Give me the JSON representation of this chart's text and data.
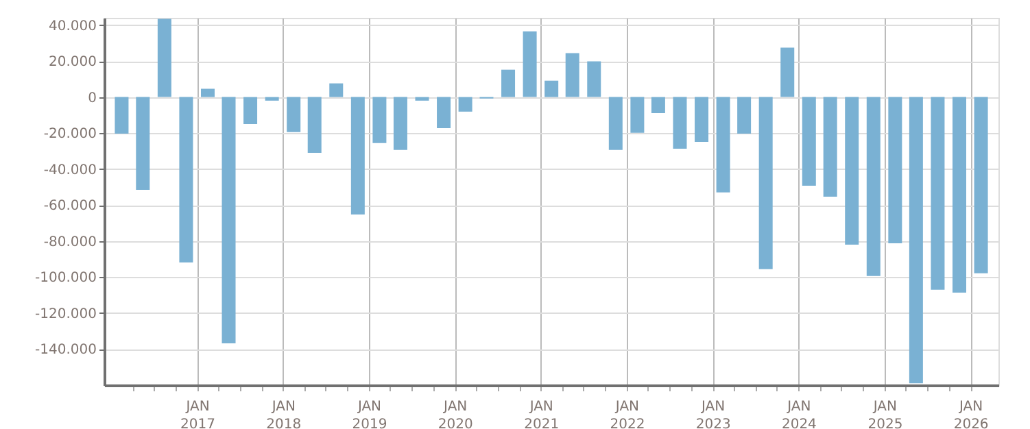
{
  "chart_data": {
    "type": "bar",
    "x": [
      "2016-02-15",
      "2016-05-15",
      "2016-08-15",
      "2016-11-15",
      "2017-02-15",
      "2017-05-15",
      "2017-08-15",
      "2017-11-15",
      "2018-02-15",
      "2018-05-15",
      "2018-08-15",
      "2018-11-15",
      "2019-02-15",
      "2019-05-15",
      "2019-08-15",
      "2019-11-15",
      "2020-02-15",
      "2020-05-15",
      "2020-08-15",
      "2020-11-15",
      "2021-02-15",
      "2021-05-15",
      "2021-08-15",
      "2021-11-15",
      "2022-02-15",
      "2022-05-15",
      "2022-08-15",
      "2022-11-15",
      "2023-02-15",
      "2023-05-15",
      "2023-08-15",
      "2023-11-15",
      "2024-02-15",
      "2024-05-15",
      "2024-08-15",
      "2024-11-15",
      "2025-02-15",
      "2025-05-15",
      "2025-08-15",
      "2025-11-15",
      "2026-02-15"
    ],
    "values": [
      -20300,
      -51500,
      43400,
      -91900,
      4600,
      -136800,
      -15000,
      -2000,
      -19500,
      -31000,
      7600,
      -65200,
      -25600,
      -29400,
      -2000,
      -17300,
      -8100,
      -800,
      15200,
      36500,
      9100,
      24400,
      19800,
      -29400,
      -19800,
      -8900,
      -28700,
      -24900,
      -53000,
      -20300,
      -95600,
      27400,
      -49200,
      -55300,
      -82000,
      -99400,
      -81200,
      -159000,
      -107000,
      -108600,
      -97900
    ],
    "color": "#7ab1d3",
    "xlim": [
      "2016-01-01",
      "2026-04-01"
    ],
    "xticks": [
      {
        "value": "2016-04-01",
        "label": null
      },
      {
        "value": "2016-07-01",
        "label": null
      },
      {
        "value": "2016-10-01",
        "label": null
      },
      {
        "value": "2017-01-01",
        "label": "JAN 2017"
      },
      {
        "value": "2017-04-01",
        "label": null
      },
      {
        "value": "2017-07-01",
        "label": null
      },
      {
        "value": "2017-10-01",
        "label": null
      },
      {
        "value": "2018-01-01",
        "label": "JAN 2018"
      },
      {
        "value": "2018-04-01",
        "label": null
      },
      {
        "value": "2018-07-01",
        "label": null
      },
      {
        "value": "2018-10-01",
        "label": null
      },
      {
        "value": "2019-01-01",
        "label": "JAN 2019"
      },
      {
        "value": "2019-04-01",
        "label": null
      },
      {
        "value": "2019-07-01",
        "label": null
      },
      {
        "value": "2019-10-01",
        "label": null
      },
      {
        "value": "2020-01-01",
        "label": "JAN 2020"
      },
      {
        "value": "2020-04-01",
        "label": null
      },
      {
        "value": "2020-07-01",
        "label": null
      },
      {
        "value": "2020-10-01",
        "label": null
      },
      {
        "value": "2021-01-01",
        "label": "JAN 2021"
      },
      {
        "value": "2021-04-01",
        "label": null
      },
      {
        "value": "2021-07-01",
        "label": null
      },
      {
        "value": "2021-10-01",
        "label": null
      },
      {
        "value": "2022-01-01",
        "label": "JAN 2022"
      },
      {
        "value": "2022-04-01",
        "label": null
      },
      {
        "value": "2022-07-01",
        "label": null
      },
      {
        "value": "2022-10-01",
        "label": null
      },
      {
        "value": "2023-01-01",
        "label": "JAN 2023"
      },
      {
        "value": "2023-04-01",
        "label": null
      },
      {
        "value": "2023-07-01",
        "label": null
      },
      {
        "value": "2023-10-01",
        "label": null
      },
      {
        "value": "2024-01-01",
        "label": "JAN 2024"
      },
      {
        "value": "2024-04-01",
        "label": null
      },
      {
        "value": "2024-07-01",
        "label": null
      },
      {
        "value": "2024-10-01",
        "label": null
      },
      {
        "value": "2025-01-01",
        "label": "JAN 2025"
      },
      {
        "value": "2025-04-01",
        "label": null
      },
      {
        "value": "2025-07-01",
        "label": null
      },
      {
        "value": "2025-10-01",
        "label": null
      },
      {
        "value": "2026-01-01",
        "label": "JAN 2026"
      }
    ],
    "ylim": [
      -160000,
      44000
    ],
    "yticks": [
      {
        "value": -140000,
        "label": "-140.000"
      },
      {
        "value": -120000,
        "label": "-120.000"
      },
      {
        "value": -100000,
        "label": "-100.000"
      },
      {
        "value": -80000,
        "label": "-80.000"
      },
      {
        "value": -60000,
        "label": "-60.000"
      },
      {
        "value": -40000,
        "label": "-40.000"
      },
      {
        "value": -20000,
        "label": "-20.000"
      },
      {
        "value": 0,
        "label": "0"
      },
      {
        "value": 20000,
        "label": "20.000"
      },
      {
        "value": 40000,
        "label": "40.000"
      }
    ],
    "grid": true
  }
}
